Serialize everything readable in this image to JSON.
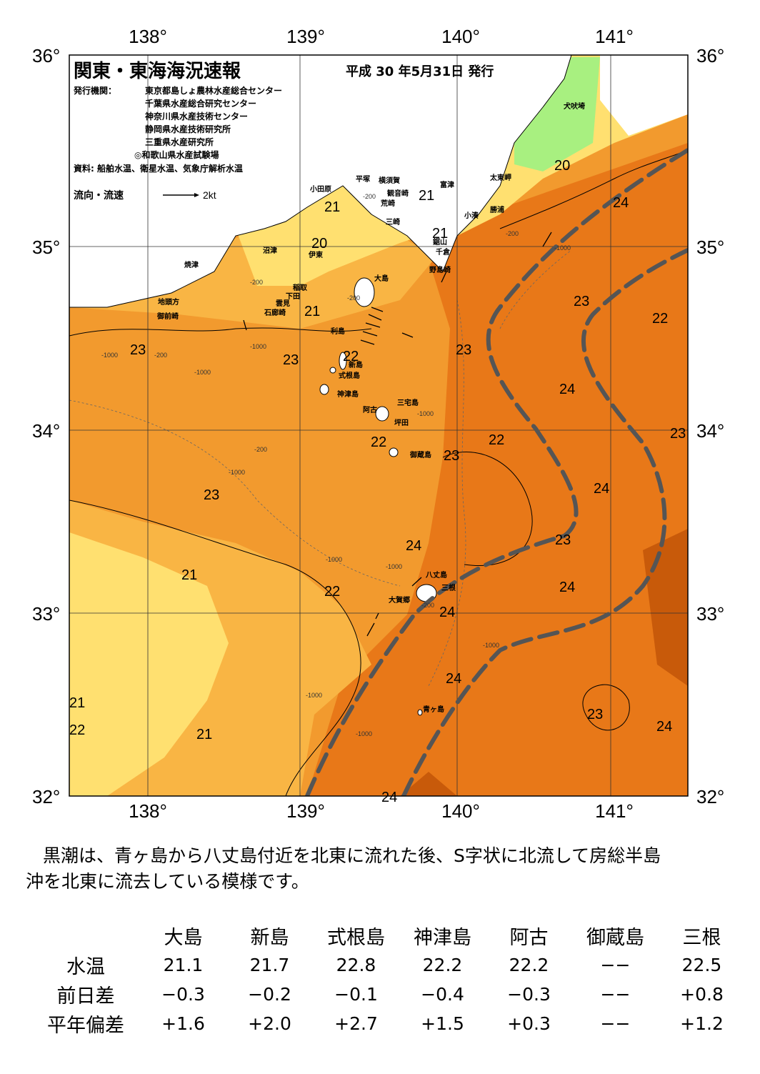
{
  "title": "関東・東海海況速報",
  "date": "平成 30 年5月31日 発行",
  "publisher_label": "発行機関：",
  "publishers": [
    "東京都島しょ農林水産総合センター",
    "千葉県水産総合研究センター",
    "神奈川県水産技術センター",
    "静岡県水産技術研究所",
    "三重県水産研究所",
    "◎和歌山県水産試験場"
  ],
  "source": "資料: 船舶水温、衛星水温、気象庁解析水温",
  "legend": {
    "label": "流向・流速",
    "unit": "2kt"
  },
  "lon_labels": [
    "138°",
    "139°",
    "140°",
    "141°"
  ],
  "lat_labels": [
    "36°",
    "35°",
    "34°",
    "33°",
    "32°"
  ],
  "places": [
    "犬吠埼",
    "太東岬",
    "勝浦",
    "小湊",
    "富津",
    "鋸山",
    "千倉",
    "野島崎",
    "横須賀",
    "観音崎",
    "平塚",
    "荒崎",
    "三崎",
    "小田原",
    "沼津",
    "伊東",
    "稲取",
    "下田",
    "雲見",
    "石廊崎",
    "焼津",
    "地頭方",
    "御前崎",
    "大島",
    "利島",
    "新島",
    "式根島",
    "神津島",
    "三宅島",
    "阿古",
    "坪田",
    "御蔵島",
    "八丈島",
    "三根",
    "大賀郷",
    "青ヶ島"
  ],
  "temp_labels": [
    "20",
    "21",
    "22",
    "23",
    "24"
  ],
  "depth_labels": [
    "-200",
    "-1000"
  ],
  "summary": [
    "黒潮は、青ヶ島から八丈島付近を北東に流れた後、S字状に北流して房総半島",
    "沖を北東に流去している模様です。"
  ],
  "table": {
    "columns": [
      "大島",
      "新島",
      "式根島",
      "神津島",
      "阿古",
      "御蔵島",
      "三根"
    ],
    "rows": [
      {
        "label": "水温",
        "values": [
          "21.1",
          "21.7",
          "22.8",
          "22.2",
          "22.2",
          "−−",
          "22.5"
        ]
      },
      {
        "label": "前日差",
        "values": [
          "−0.3",
          "−0.2",
          "−0.1",
          "−0.4",
          "−0.3",
          "−−",
          "+0.8"
        ]
      },
      {
        "label": "平年偏差",
        "values": [
          "+1.6",
          "+2.0",
          "+2.7",
          "+1.5",
          "+0.3",
          "−−",
          "+1.2"
        ]
      }
    ]
  },
  "colors": {
    "t20": "#a8f080",
    "t21": "#ffe070",
    "t22": "#f9b544",
    "t23": "#f29a2e",
    "t24": "#e87818",
    "t25": "#c85a0a",
    "land": "#ffffff",
    "kuroshio": "#555555"
  }
}
